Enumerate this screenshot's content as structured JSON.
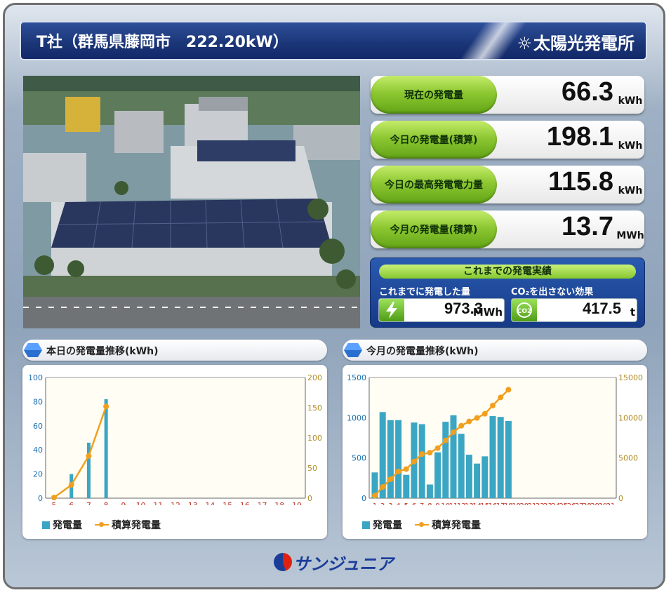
{
  "header": {
    "site_title": "T社（群馬県藤岡市　222.20kW）",
    "brand": "太陽光発電所"
  },
  "stats": [
    {
      "label": "現在の発電量",
      "value": "66.3",
      "unit": "kWh"
    },
    {
      "label": "今日の発電量(積算)",
      "value": "198.1",
      "unit": "kWh"
    },
    {
      "label": "今日の最高発電電力量",
      "value": "115.8",
      "unit": "kWh"
    },
    {
      "label": "今月の発電量(積算)",
      "value": "13.7",
      "unit": "MWh"
    }
  ],
  "record": {
    "title": "これまでの発電実績",
    "generated_label": "これまでに発電した量",
    "generated_value": "973.3",
    "generated_unit": "MWh",
    "co2_label": "CO₂を出さない効果",
    "co2_value": "417.5",
    "co2_unit": "t",
    "co2_icon_text": "CO2"
  },
  "daily_panel": {
    "title": "本日の発電量推移(kWh)",
    "legend_bar": "発電量",
    "legend_line": "積算発電量"
  },
  "monthly_panel": {
    "title": "今月の発電量推移(kWh)",
    "legend_bar": "発電量",
    "legend_line": "積算発電量"
  },
  "footer": {
    "company": "サンジュニア"
  },
  "colors": {
    "bar": "#3aa6c4",
    "line": "#f0a020",
    "left_axis": "#1a6fb0",
    "right_axis": "#b08a20"
  },
  "chart_data": [
    {
      "type": "bar",
      "categories": [
        "5",
        "6",
        "7",
        "8",
        "9",
        "10",
        "11",
        "12",
        "13",
        "14",
        "15",
        "16",
        "17",
        "18",
        "19"
      ],
      "series": [
        {
          "name": "発電量",
          "axis": "left",
          "values": [
            1,
            20,
            46,
            82,
            null,
            null,
            null,
            null,
            null,
            null,
            null,
            null,
            null,
            null,
            null
          ]
        },
        {
          "name": "積算発電量",
          "axis": "right",
          "kind": "line",
          "values": [
            1,
            22,
            70,
            152,
            null,
            null,
            null,
            null,
            null,
            null,
            null,
            null,
            null,
            null,
            null
          ]
        }
      ],
      "y_left": {
        "ticks": [
          "0",
          "20",
          "40",
          "60",
          "80",
          "100"
        ],
        "range": [
          0,
          100
        ]
      },
      "y_right": {
        "ticks": [
          "0",
          "50",
          "100",
          "150",
          "200"
        ],
        "range": [
          0,
          200
        ]
      },
      "legend": "bottom-left",
      "grid": false
    },
    {
      "type": "bar",
      "categories": [
        "1",
        "2",
        "3",
        "4",
        "5",
        "6",
        "7",
        "8",
        "9",
        "10",
        "11",
        "12",
        "13",
        "14",
        "15",
        "16",
        "17",
        "18",
        "19",
        "20",
        "21",
        "22",
        "23",
        "24",
        "25",
        "26",
        "27",
        "28",
        "29",
        "30",
        "31"
      ],
      "series": [
        {
          "name": "発電量",
          "axis": "left",
          "values": [
            320,
            1070,
            970,
            970,
            290,
            940,
            920,
            170,
            570,
            950,
            1030,
            800,
            540,
            430,
            520,
            1020,
            1010,
            960,
            null,
            null,
            null,
            null,
            null,
            null,
            null,
            null,
            null,
            null,
            null,
            null,
            null
          ]
        },
        {
          "name": "積算発電量",
          "axis": "right",
          "kind": "line",
          "values": [
            320,
            1390,
            2360,
            3330,
            3620,
            4560,
            5480,
            5650,
            6220,
            7170,
            8200,
            9000,
            9540,
            9970,
            10490,
            11510,
            12520,
            13480,
            null,
            null,
            null,
            null,
            null,
            null,
            null,
            null,
            null,
            null,
            null,
            null,
            null
          ]
        }
      ],
      "y_left": {
        "ticks": [
          "0",
          "500",
          "1000",
          "1500"
        ],
        "range": [
          0,
          1500
        ]
      },
      "y_right": {
        "ticks": [
          "0",
          "5000",
          "10000",
          "15000"
        ],
        "range": [
          0,
          15000
        ]
      },
      "legend": "bottom-left",
      "grid": false
    }
  ]
}
